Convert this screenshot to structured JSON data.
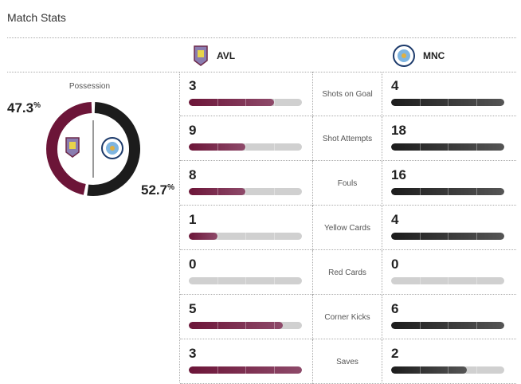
{
  "title": "Match Stats",
  "teams": {
    "home": {
      "abbr": "AVL",
      "color": "#6c1538",
      "possession": "47.3",
      "possession_value": 47.3
    },
    "away": {
      "abbr": "MNC",
      "color": "#1c1c1c",
      "possession": "52.7",
      "possession_value": 52.7
    }
  },
  "possession_label": "Possession",
  "percent_sign": "%",
  "stats": [
    {
      "label": "Shots on Goal",
      "home": 3,
      "away": 4
    },
    {
      "label": "Shot Attempts",
      "home": 9,
      "away": 18
    },
    {
      "label": "Fouls",
      "home": 8,
      "away": 16
    },
    {
      "label": "Yellow Cards",
      "home": 1,
      "away": 4
    },
    {
      "label": "Red Cards",
      "home": 0,
      "away": 0
    },
    {
      "label": "Corner Kicks",
      "home": 5,
      "away": 6
    },
    {
      "label": "Saves",
      "home": 3,
      "away": 2
    }
  ]
}
